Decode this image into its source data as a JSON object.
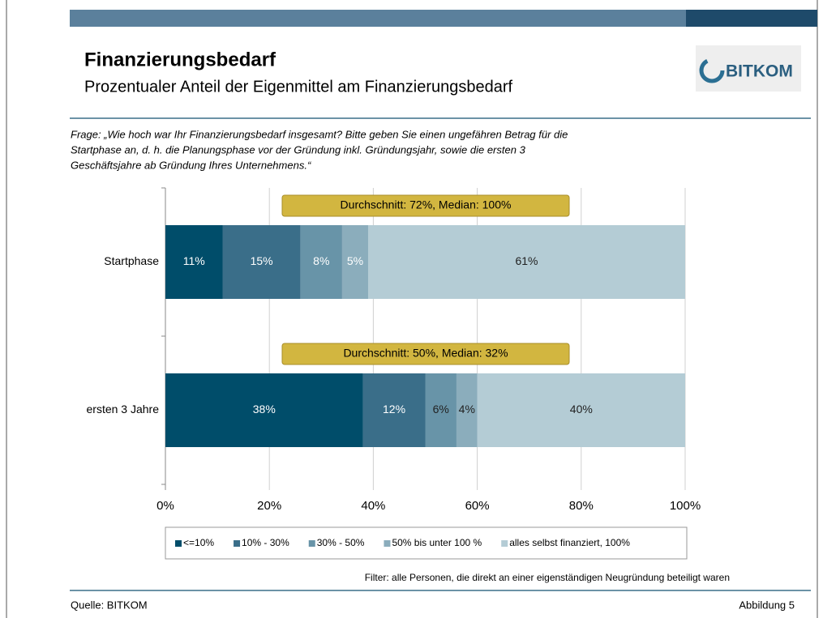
{
  "chart_data": {
    "type": "stacked-bar-horizontal",
    "title": "Finanzierungsbedarf",
    "subtitle": "Prozentualer Anteil der Eigenmittel am Finanzierungsbedarf",
    "logo": "BITKOM",
    "question": [
      "Frage: „Wie hoch war Ihr Finanzierungsbedarf insgesamt? Bitte geben Sie einen ungefähren Betrag für die",
      "Startphase an, d. h. die Planungsphase vor der Gründung inkl. Gründungsjahr, sowie die ersten 3",
      "Geschäftsjahre ab Gründung Ihres Unternehmens.“"
    ],
    "categories": [
      "Startphase",
      "ersten 3 Jahre"
    ],
    "annotations": [
      "Durchschnitt: 72%, Median: 100%",
      "Durchschnitt: 50%, Median: 32%"
    ],
    "series": [
      {
        "name": "<=10%",
        "color": "#004d6a",
        "values": [
          11,
          38
        ],
        "value_labels": [
          "11%",
          "38%"
        ]
      },
      {
        "name": "10% - 30%",
        "color": "#3a6e89",
        "values": [
          15,
          12
        ],
        "value_labels": [
          "15%",
          "12%"
        ]
      },
      {
        "name": "30% -  50%",
        "color": "#6894a8",
        "values": [
          8,
          6
        ],
        "value_labels": [
          "8%",
          "6%"
        ]
      },
      {
        "name": "50% bis unter 100 %",
        "color": "#8badbc",
        "values": [
          5,
          4
        ],
        "value_labels": [
          "5%",
          "4%"
        ]
      },
      {
        "name": "alles selbst finanziert, 100%",
        "color": "#b4ccd5",
        "values": [
          61,
          40
        ],
        "value_labels": [
          "61%",
          "40%"
        ]
      }
    ],
    "xlim": [
      0,
      100
    ],
    "xticks": [
      {
        "value": 0,
        "label": "0%"
      },
      {
        "value": 20,
        "label": "20%"
      },
      {
        "value": 40,
        "label": "40%"
      },
      {
        "value": 60,
        "label": "60%"
      },
      {
        "value": 80,
        "label": "80%"
      },
      {
        "value": 100,
        "label": "100%"
      }
    ],
    "grid": true,
    "legend": "bottom",
    "filter": "Filter: alle Personen, die direkt an einer eigenständigen Neugründung beteiligt waren",
    "source": "Quelle: BITKOM",
    "figure": "Abbildung 5"
  }
}
